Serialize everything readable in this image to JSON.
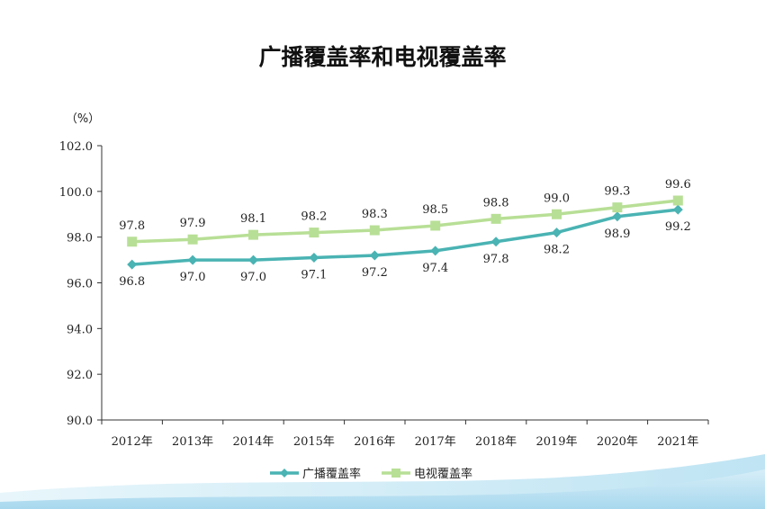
{
  "chart_data": {
    "type": "line",
    "title": "广播覆盖率和电视覆盖率",
    "ylabel": "（%）",
    "xlabel": "",
    "ylim": [
      90.0,
      102.0
    ],
    "yticks": [
      "90.0",
      "92.0",
      "94.0",
      "96.0",
      "98.0",
      "100.0",
      "102.0"
    ],
    "categories": [
      "2012年",
      "2013年",
      "2014年",
      "2015年",
      "2016年",
      "2017年",
      "2018年",
      "2019年",
      "2020年",
      "2021年"
    ],
    "series": [
      {
        "name": "广播覆盖率",
        "color": "#4ab3b3",
        "marker": "diamond",
        "values": [
          96.8,
          97.0,
          97.0,
          97.1,
          97.2,
          97.4,
          97.8,
          98.2,
          98.9,
          99.2
        ],
        "labels": [
          "96.8",
          "97.0",
          "97.0",
          "97.1",
          "97.2",
          "97.4",
          "97.8",
          "98.2",
          "98.9",
          "99.2"
        ],
        "label_position": "below"
      },
      {
        "name": "电视覆盖率",
        "color": "#b8df96",
        "marker": "square",
        "values": [
          97.8,
          97.9,
          98.1,
          98.2,
          98.3,
          98.5,
          98.8,
          99.0,
          99.3,
          99.6
        ],
        "labels": [
          "97.8",
          "97.9",
          "98.1",
          "98.2",
          "98.3",
          "98.5",
          "98.8",
          "99.0",
          "99.3",
          "99.6"
        ],
        "label_position": "above"
      }
    ],
    "grid": false,
    "legend_position": "bottom-center"
  }
}
